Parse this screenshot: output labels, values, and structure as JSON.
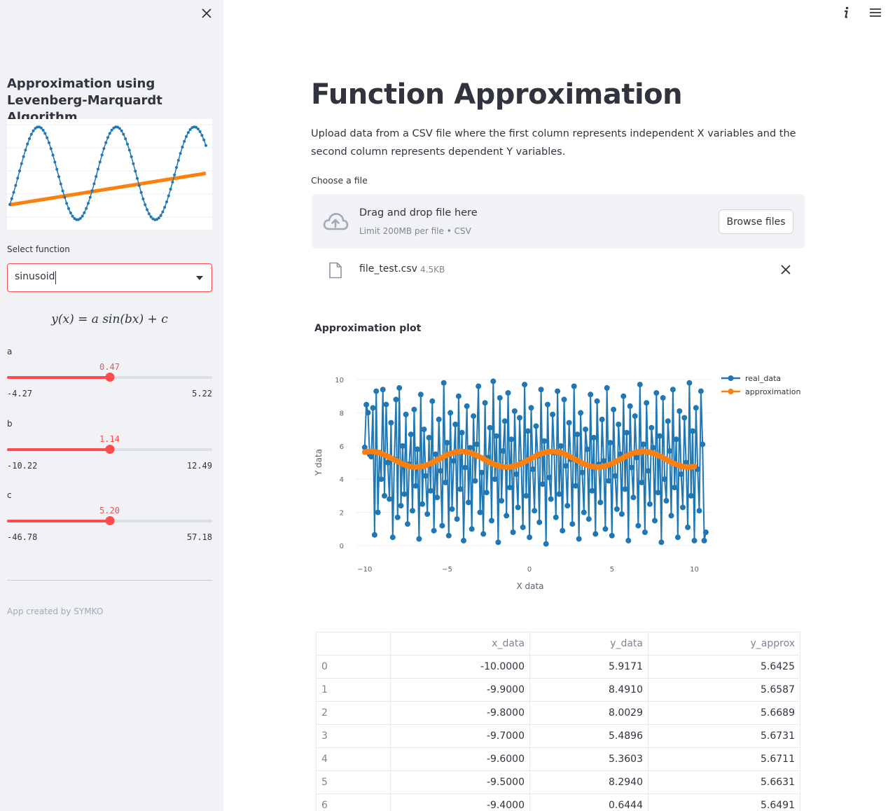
{
  "sidebar": {
    "title": "Approximation using Levenberg-Marquardt Algorithm",
    "select_label": "Select function",
    "selected_function": "sinusoid",
    "formula": "y(x) = a sin(bx) + c",
    "sliders": [
      {
        "label": "a",
        "value": "0.47",
        "min": "-4.27",
        "max": "5.22",
        "fraction": 0.5
      },
      {
        "label": "b",
        "value": "1.14",
        "min": "-10.22",
        "max": "12.49",
        "fraction": 0.5
      },
      {
        "label": "c",
        "value": "5.20",
        "min": "-46.78",
        "max": "57.18",
        "fraction": 0.5
      }
    ],
    "footer": "App created by SYMKO"
  },
  "main": {
    "title": "Function Approximation",
    "intro": "Upload data from a CSV file where the first column represents independent X variables and the second column represents dependent Y variables.",
    "uploader": {
      "label": "Choose a file",
      "dropzone_title": "Drag and drop file here",
      "dropzone_limit": "Limit 200MB per file • CSV",
      "browse_label": "Browse files"
    },
    "file": {
      "name": "file_test.csv",
      "size": "4.5KB"
    },
    "plot_title": "Approximation plot"
  },
  "table": {
    "columns": [
      "",
      "x_data",
      "y_data",
      "y_approx"
    ],
    "rows": [
      [
        "0",
        "-10.0000",
        "5.9171",
        "5.6425"
      ],
      [
        "1",
        "-9.9000",
        "8.4910",
        "5.6587"
      ],
      [
        "2",
        "-9.8000",
        "8.0029",
        "5.6689"
      ],
      [
        "3",
        "-9.7000",
        "5.4896",
        "5.6731"
      ],
      [
        "4",
        "-9.6000",
        "5.3603",
        "5.6711"
      ],
      [
        "5",
        "-9.5000",
        "8.2940",
        "5.6631"
      ],
      [
        "6",
        "-9.4000",
        "0.6444",
        "5.6491"
      ]
    ]
  },
  "colors": {
    "accent": "#ff4b4b",
    "series_real": "#1f77b4",
    "series_approx": "#ff7f0e"
  },
  "chart_data": [
    {
      "type": "line",
      "title": "",
      "xlabel": "",
      "ylabel": "",
      "xlim": [
        -10,
        10
      ],
      "series": [
        {
          "kind": "sine",
          "amplitude": 1.92,
          "frequency": 0.79,
          "phase": 0.88,
          "offset": 0.0,
          "x_range": [
            -10,
            10
          ]
        },
        {
          "kind": "linear",
          "start": -1.3,
          "end": 0.0,
          "x_range": [
            -10,
            10
          ]
        }
      ]
    },
    {
      "type": "line",
      "title": "",
      "xlabel": "X data",
      "ylabel": "Y data",
      "xlim": [
        -10.5,
        11
      ],
      "ylim": [
        0,
        10
      ],
      "x_ticks": [
        "−10",
        "−5",
        "0",
        "5",
        "10"
      ],
      "y_ticks": [
        "0",
        "2",
        "4",
        "6",
        "8",
        "10"
      ],
      "legend_position": "top-right",
      "series": [
        {
          "name": "real_data",
          "mode": "lines+markers",
          "x_start": -10,
          "x_step": 0.1,
          "y": [
            5.9171,
            8.491,
            8.0029,
            5.4896,
            5.3603,
            8.294,
            0.6444,
            9.3,
            2.0,
            5.6,
            4.0,
            9.4,
            3.0,
            8.5,
            5.0,
            2.8,
            7.4,
            0.5,
            5.2,
            8.8,
            1.7,
            9.5,
            2.4,
            6.0,
            3.1,
            7.9,
            1.3,
            4.9,
            6.7,
            2.1,
            8.2,
            3.6,
            5.8,
            0.4,
            9.1,
            2.5,
            7.0,
            4.2,
            1.9,
            6.5,
            3.3,
            8.7,
            0.9,
            5.5,
            2.9,
            7.6,
            4.5,
            1.2,
            9.8,
            3.8,
            6.2,
            0.6,
            8.0,
            2.2,
            5.1,
            7.3,
            1.6,
            9.0,
            3.4,
            6.8,
            0.3,
            4.7,
            8.4,
            2.6,
            5.9,
            1.0,
            7.8,
            3.9,
            6.1,
            9.6,
            2.0,
            4.4,
            0.7,
            8.6,
            3.2,
            5.3,
            7.1,
            1.5,
            9.9,
            4.0,
            6.6,
            0.2,
            8.9,
            2.7,
            5.7,
            7.5,
            1.8,
            9.2,
            3.5,
            6.4,
            0.8,
            8.1,
            4.3,
            2.3,
            7.7,
            5.0,
            1.1,
            9.7,
            3.0,
            6.9,
            0.5,
            8.3,
            4.6,
            2.1,
            7.2,
            5.4,
            1.4,
            9.4,
            3.7,
            6.3,
            0.1,
            8.5,
            4.1,
            2.8,
            7.9,
            5.6,
            1.7,
            9.3,
            3.1,
            6.0,
            0.9,
            8.8,
            4.8,
            2.4,
            7.4,
            5.2,
            1.3,
            9.6,
            3.6,
            6.7,
            0.4,
            8.0,
            4.4,
            2.0,
            7.0,
            5.8,
            1.6,
            9.1,
            3.3,
            6.5,
            0.7,
            8.7,
            4.9,
            2.6,
            7.6,
            5.1,
            1.0,
            9.5,
            3.9,
            6.2,
            0.6,
            8.2,
            4.2,
            2.2,
            7.3,
            5.5,
            1.9,
            9.0,
            3.4,
            6.8,
            0.3,
            8.4,
            4.7,
            2.9,
            7.8,
            5.3,
            1.2,
            9.7,
            3.8,
            6.1,
            0.8,
            8.6,
            4.5,
            2.5,
            7.1,
            5.9,
            1.5,
            9.2,
            3.2,
            6.6,
            0.2,
            8.9,
            4.0,
            2.7,
            7.5,
            5.7,
            1.8,
            9.4,
            3.5,
            6.4,
            0.5,
            8.1,
            4.3,
            2.3,
            7.7,
            5.0,
            1.1,
            9.8,
            3.0,
            6.9,
            0.3,
            8.3,
            4.6,
            2.1,
            9.3,
            6.1,
            0.3,
            0.8
          ]
        },
        {
          "name": "approximation",
          "mode": "lines+markers",
          "x_start": -10,
          "x_step": 0.1,
          "formula": "0.47*sin(1.14*x)+5.20"
        }
      ]
    }
  ]
}
